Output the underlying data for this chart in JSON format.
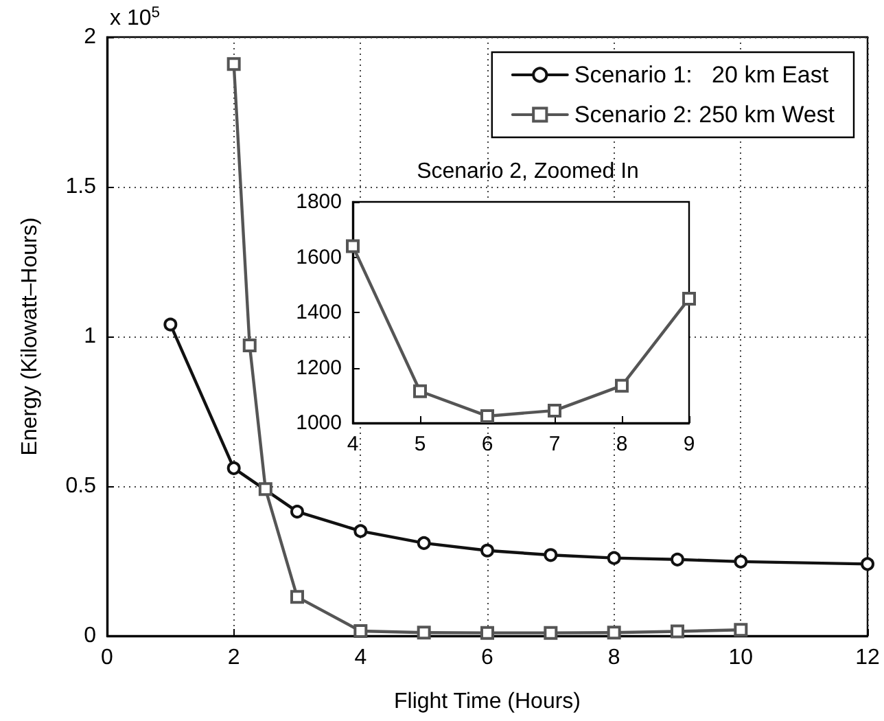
{
  "chart_data": [
    {
      "type": "line",
      "xlabel": "Flight Time (Hours)",
      "ylabel": "Energy (Kilowatt–Hours)",
      "annotations": [
        "x 10$^{5}$"
      ],
      "xlim": [
        0,
        12
      ],
      "xticks": [
        0,
        2,
        4,
        6,
        8,
        10,
        12
      ],
      "ylim": [
        0,
        2
      ],
      "yticks": [
        0,
        0.5,
        1,
        1.5,
        2
      ],
      "grid": true,
      "legend": "top right",
      "line_style": "solid",
      "series": [
        {
          "name": "Scenario 1:   20 km East",
          "color": "#111111",
          "marker": "circle",
          "x": [
            1,
            2,
            3,
            4,
            5,
            6,
            7,
            8,
            9,
            10,
            12
          ],
          "values": [
            1.04,
            0.56,
            0.415,
            0.35,
            0.31,
            0.285,
            0.27,
            0.26,
            0.255,
            0.248,
            0.24
          ]
        },
        {
          "name": "Scenario 2: 250 km West",
          "color": "#555555",
          "marker": "square",
          "x": [
            2,
            2.25,
            2.5,
            3,
            4,
            5,
            6,
            7,
            8,
            9,
            10
          ],
          "values": [
            1.91,
            0.97,
            0.49,
            0.13,
            0.016,
            0.011,
            0.01,
            0.01,
            0.011,
            0.015,
            0.02
          ]
        }
      ]
    },
    {
      "type": "line",
      "title": "Scenario 2, Zoomed In",
      "xlim": [
        4,
        9
      ],
      "xticks": [
        4,
        5,
        6,
        7,
        8,
        9
      ],
      "ylim": [
        1000,
        1800
      ],
      "yticks": [
        1000,
        1200,
        1400,
        1600,
        1800
      ],
      "grid": false,
      "line_style": "solid",
      "series": [
        {
          "color": "#555555",
          "marker": "square",
          "x": [
            4,
            5,
            6,
            7,
            8,
            9
          ],
          "values": [
            1640,
            1115,
            1025,
            1045,
            1135,
            1450
          ]
        }
      ]
    }
  ]
}
